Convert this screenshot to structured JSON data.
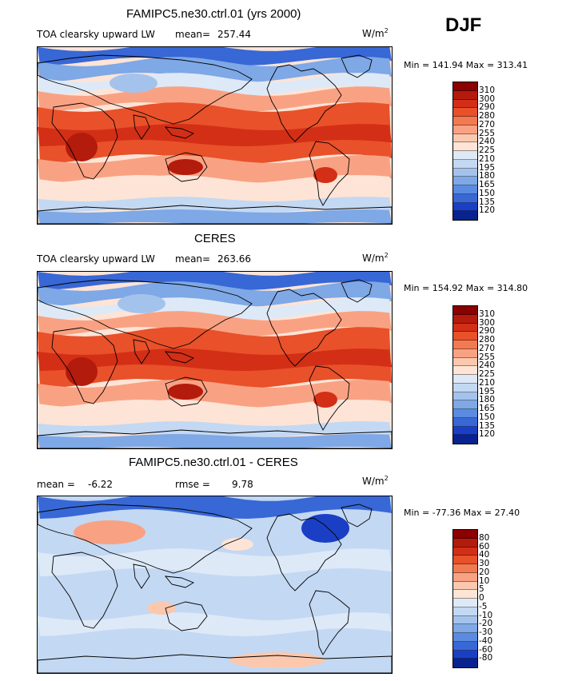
{
  "season": "DJF",
  "panels": [
    {
      "title": "FAMIPC5.ne30.ctrl.01 (yrs 2000)",
      "variable": "TOA clearsky upward LW",
      "mean_label": "mean=",
      "mean_value": "257.44",
      "units_base": "W/m",
      "units_exp": "2",
      "minmax": "Min = 141.94 Max = 313.41",
      "colorbar": {
        "labels": [
          "310",
          "300",
          "290",
          "280",
          "270",
          "255",
          "240",
          "225",
          "210",
          "195",
          "180",
          "165",
          "150",
          "135",
          "120"
        ],
        "colors": [
          "#8b0000",
          "#b31b0c",
          "#d32f16",
          "#e8512a",
          "#f27a51",
          "#f9a283",
          "#fcc8ad",
          "#fde4d6",
          "#dde9f7",
          "#c3d8f2",
          "#a4c3ec",
          "#7ea8e6",
          "#5a8be0",
          "#3867d6",
          "#1a3fc4",
          "#08238f"
        ]
      },
      "kind": "abs_model"
    },
    {
      "title": "CERES",
      "variable": "TOA clearsky upward LW",
      "mean_label": "mean=",
      "mean_value": "263.66",
      "units_base": "W/m",
      "units_exp": "2",
      "minmax": "Min = 154.92 Max = 314.80",
      "colorbar": {
        "labels": [
          "310",
          "300",
          "290",
          "280",
          "270",
          "255",
          "240",
          "225",
          "210",
          "195",
          "180",
          "165",
          "150",
          "135",
          "120"
        ],
        "colors": [
          "#8b0000",
          "#b31b0c",
          "#d32f16",
          "#e8512a",
          "#f27a51",
          "#f9a283",
          "#fcc8ad",
          "#fde4d6",
          "#dde9f7",
          "#c3d8f2",
          "#a4c3ec",
          "#7ea8e6",
          "#5a8be0",
          "#3867d6",
          "#1a3fc4",
          "#08238f"
        ]
      },
      "kind": "abs_obs"
    },
    {
      "title": "FAMIPC5.ne30.ctrl.01 - CERES",
      "mean_label": "mean =",
      "mean_value": "-6.22",
      "rmse_label": "rmse =",
      "rmse_value": "9.78",
      "units_base": "W/m",
      "units_exp": "2",
      "minmax": "Min = -77.36 Max =  27.40",
      "colorbar": {
        "labels": [
          "80",
          "60",
          "40",
          "30",
          "20",
          "10",
          "5",
          "0",
          "-5",
          "-10",
          "-20",
          "-30",
          "-40",
          "-60",
          "-80"
        ],
        "colors": [
          "#8b0000",
          "#b31b0c",
          "#d32f16",
          "#e8512a",
          "#f27a51",
          "#f9a283",
          "#fcc8ad",
          "#fde4d6",
          "#dde9f7",
          "#c3d8f2",
          "#a4c3ec",
          "#7ea8e6",
          "#5a8be0",
          "#3867d6",
          "#1a3fc4",
          "#08238f"
        ]
      },
      "kind": "diff"
    }
  ]
}
